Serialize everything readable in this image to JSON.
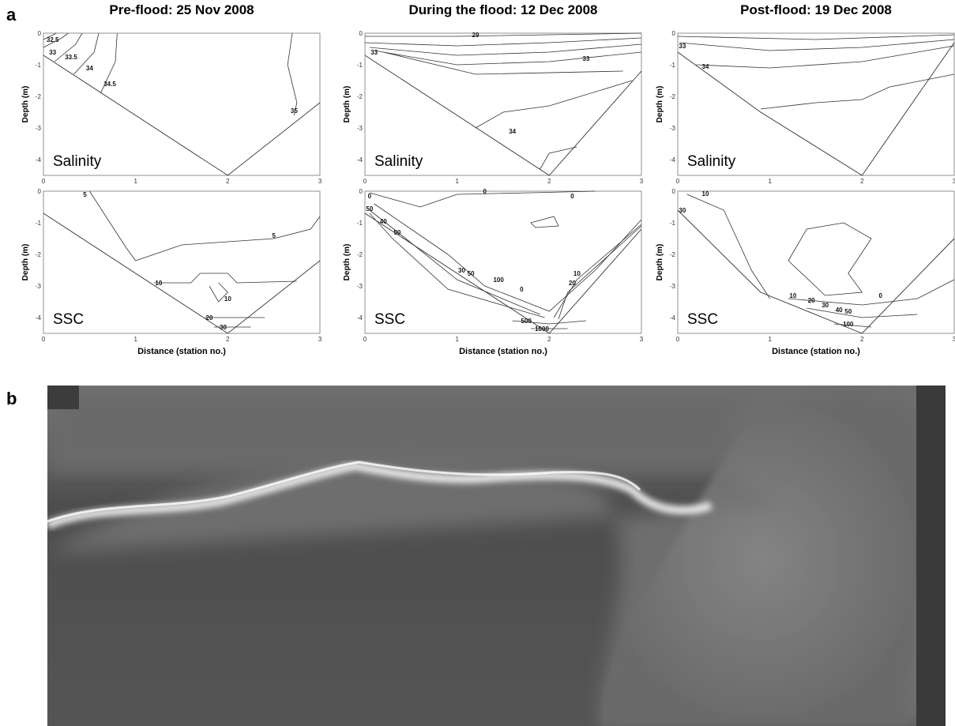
{
  "panel_a": {
    "label": "a",
    "y_axis_label": "Depth (m)",
    "x_axis_label": "Distance (station no.)",
    "yticks": [
      "0",
      "-1",
      "-2",
      "-3",
      "-4"
    ],
    "xticks": [
      "0",
      "1",
      "2",
      "3"
    ],
    "columns": [
      {
        "title": "Pre-flood: 25 Nov 2008",
        "salinity": {
          "label": "Salinity",
          "contour_labels": [
            "32.5",
            "33",
            "33.5",
            "34",
            "34.5",
            "35"
          ]
        },
        "ssc": {
          "label": "SSC",
          "contour_labels": [
            "5",
            "5",
            "10",
            "10",
            "20",
            "30"
          ]
        }
      },
      {
        "title": "During the flood: 12 Dec 2008",
        "salinity": {
          "label": "Salinity",
          "contour_labels": [
            "29",
            "33",
            "33",
            "34"
          ]
        },
        "ssc": {
          "label": "SSC",
          "contour_labels": [
            "0",
            "0",
            "0",
            "50",
            "40",
            "50",
            "30",
            "50",
            "100",
            "0",
            "10",
            "20",
            "500",
            "1000"
          ]
        }
      },
      {
        "title": "Post-flood: 19 Dec 2008",
        "salinity": {
          "label": "Salinity",
          "contour_labels": [
            "33",
            "34"
          ]
        },
        "ssc": {
          "label": "SSC",
          "contour_labels": [
            "10",
            "30",
            "0",
            "10",
            "20",
            "30",
            "40",
            "50",
            "100"
          ]
        }
      }
    ]
  },
  "panel_b": {
    "label": "b"
  }
}
